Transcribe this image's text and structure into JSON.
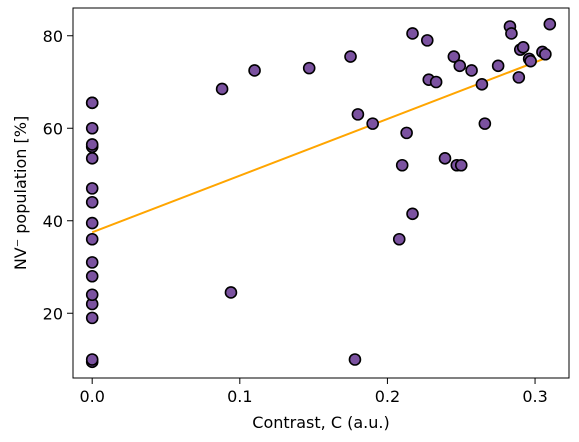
{
  "chart_data": {
    "type": "scatter",
    "title": "",
    "xlabel": "Contrast, C (a.u.)",
    "ylabel": "NV⁻ population [%]",
    "xlim": [
      -0.013,
      0.323
    ],
    "ylim": [
      6,
      86
    ],
    "xticks": [
      0.0,
      0.1,
      0.2,
      0.3
    ],
    "xtick_labels": [
      "0.0",
      "0.1",
      "0.2",
      "0.3"
    ],
    "yticks": [
      20,
      40,
      60,
      80
    ],
    "ytick_labels": [
      "20",
      "40",
      "60",
      "80"
    ],
    "grid": false,
    "legend": "none",
    "colors": {
      "points": "#7b52a0",
      "point_edge": "#000000",
      "fit_line": "#ffa500"
    },
    "series": [
      {
        "x": [
          0.0,
          0.0,
          0.0,
          0.0,
          0.0,
          0.0,
          0.0,
          0.0,
          0.0,
          0.0,
          0.0,
          0.0,
          0.0,
          0.0,
          0.0,
          0.0,
          0.0,
          0.088,
          0.094,
          0.11,
          0.147,
          0.175,
          0.178,
          0.18,
          0.19,
          0.208,
          0.21,
          0.213,
          0.217,
          0.217,
          0.227,
          0.228,
          0.233,
          0.239,
          0.245,
          0.247,
          0.249,
          0.25,
          0.257,
          0.264,
          0.266,
          0.275,
          0.283,
          0.284,
          0.289,
          0.29,
          0.292,
          0.296,
          0.297,
          0.305,
          0.307,
          0.31
        ],
        "y": [
          9.5,
          10.0,
          19.0,
          22.0,
          24.0,
          28.0,
          31.0,
          36.0,
          39.5,
          44.0,
          47.0,
          53.5,
          56.0,
          56.5,
          60.0,
          65.5,
          65.5,
          68.5,
          24.5,
          72.5,
          73.0,
          75.5,
          10.0,
          63.0,
          61.0,
          36.0,
          52.0,
          59.0,
          41.5,
          80.5,
          79.0,
          70.5,
          70.0,
          53.5,
          75.5,
          52.0,
          73.5,
          52.0,
          72.5,
          69.5,
          61.0,
          73.5,
          82.0,
          80.5,
          71.0,
          77.0,
          77.5,
          75.0,
          74.5,
          76.5,
          76.0,
          82.5
        ]
      }
    ],
    "fit": {
      "x": [
        0.0,
        0.31
      ],
      "y": [
        37.5,
        75.5
      ]
    }
  }
}
